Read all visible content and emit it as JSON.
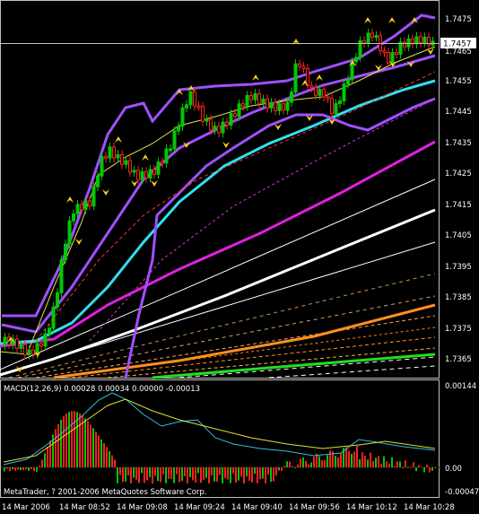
{
  "main": {
    "price_labels": [
      "1.7475",
      "1.7465",
      "1.7455",
      "1.7445",
      "1.7435",
      "1.7425",
      "1.7415",
      "1.7405",
      "1.7395",
      "1.7385",
      "1.7375",
      "1.7365"
    ],
    "current_price": "1.7457"
  },
  "macd": {
    "header": "MACD(12,26,9) 0.00028 0.00034 0.00000 -0.00013",
    "scale_labels": [
      "0.00144",
      "0.00",
      "-0.00047"
    ],
    "copyright": "MetaTrader, ? 2001-2006 MetaQuotes Software Corp."
  },
  "time_labels": [
    "14 Mar 2006",
    "14 Mar 08:52",
    "14 Mar 09:08",
    "14 Mar 09:24",
    "14 Mar 09:40",
    "14 Mar 09:56",
    "14 Mar 10:12",
    "14 Mar 10:28"
  ],
  "colors": {
    "background": "#000000",
    "bull": "#00c800",
    "bear": "#ff2020",
    "bands": "#a050ff",
    "ma_cyan": "#30e0f0",
    "ma_magenta": "#e020e0",
    "ma_white": "#ffffff",
    "ma_orange": "#ff9020",
    "ma_green": "#20e020",
    "fractal": "#ffd020"
  }
}
